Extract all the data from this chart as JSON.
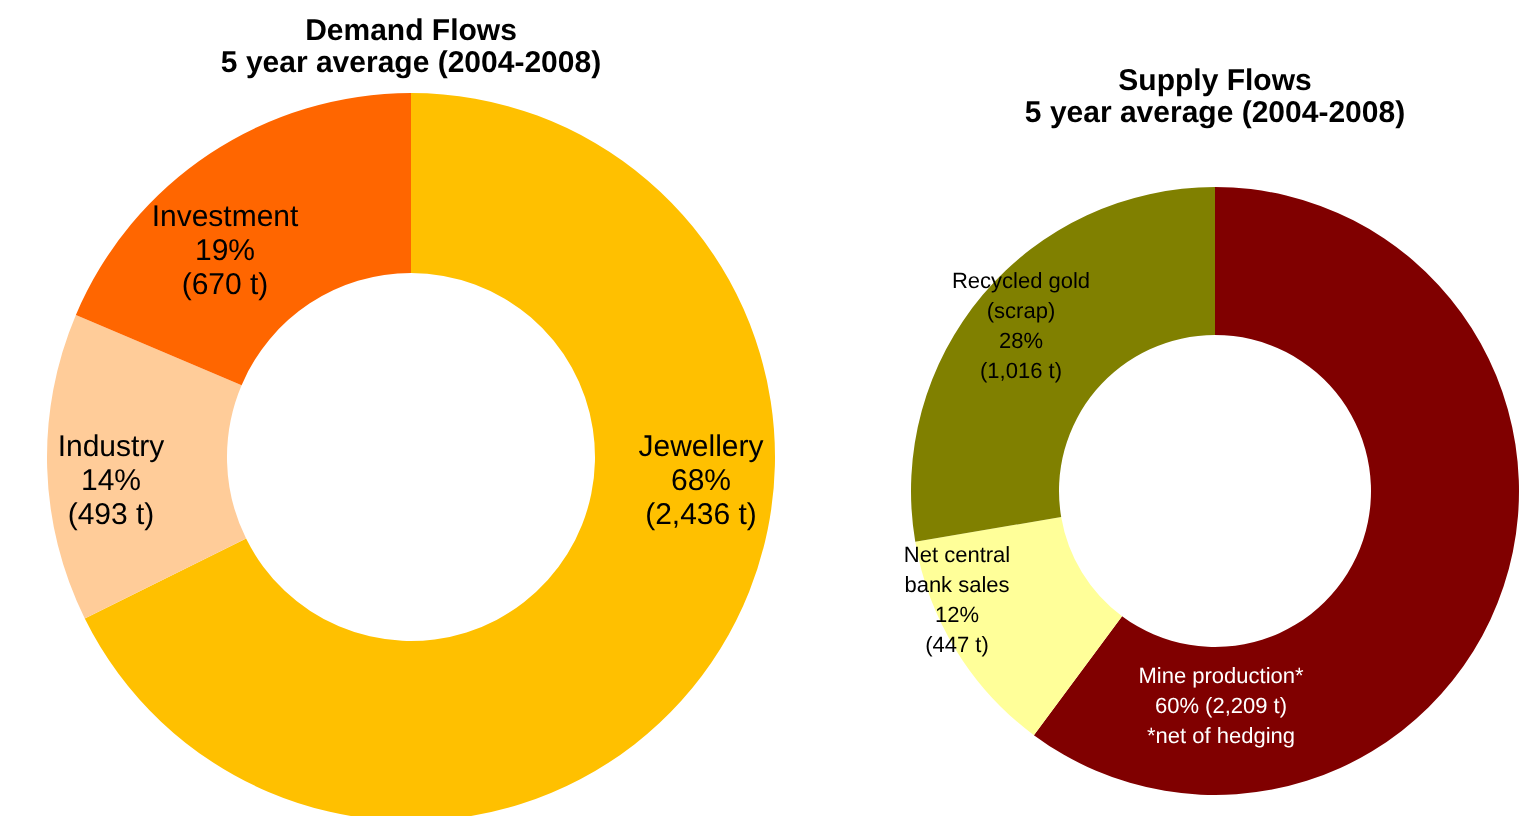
{
  "chart_data": [
    {
      "type": "donut",
      "title": "Demand Flows",
      "subtitle": "5 year average (2004-2008)",
      "categories": [
        "Jewellery",
        "Industry",
        "Investment"
      ],
      "values": [
        2436,
        493,
        670
      ],
      "value_labels": [
        "68%\n(2,436 t)",
        "14%\n(493 t)",
        "19%\n(670 t)"
      ],
      "colors": [
        "#ffc000",
        "#ffcc99",
        "#ff6600"
      ],
      "legend": false
    },
    {
      "type": "donut",
      "title": "Supply Flows",
      "subtitle": "5 year average (2004-2008)",
      "categories": [
        "Mine production*",
        "Net central\nbank sales",
        "Recycled gold\n(scrap)"
      ],
      "values": [
        2209,
        447,
        1016
      ],
      "value_labels": [
        "60% (2,209 t)",
        "12%\n(447 t)",
        "28%\n(1,016 t)"
      ],
      "colors": [
        "#800000",
        "#ffff99",
        "#808000"
      ],
      "annotations": [
        "*net of hedging"
      ],
      "legend": false
    }
  ]
}
